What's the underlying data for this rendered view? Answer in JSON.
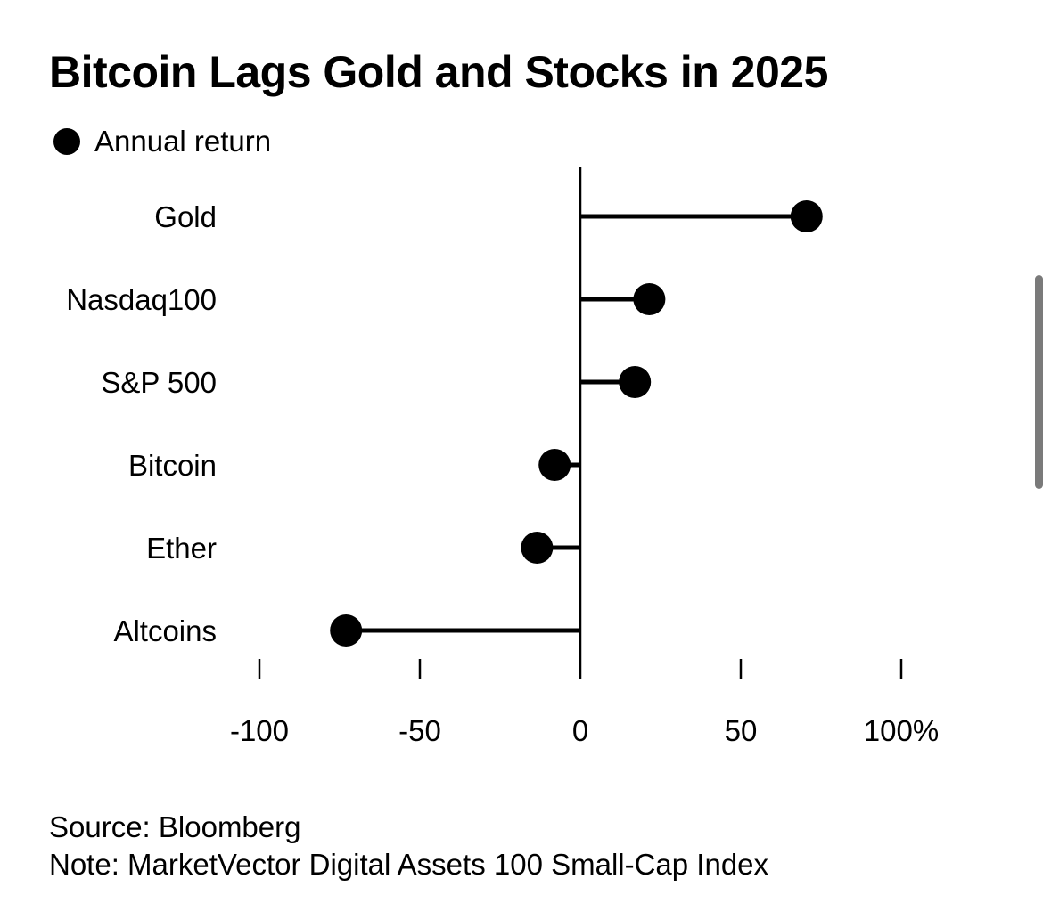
{
  "title": "Bitcoin Lags Gold and Stocks in 2025",
  "legend": {
    "label": "Annual return",
    "marker": "filled-circle"
  },
  "chart_data": {
    "type": "lollipop",
    "title": "Bitcoin Lags Gold and Stocks in 2025",
    "orientation": "horizontal",
    "categories": [
      "Gold",
      "Nasdaq100",
      "S&P 500",
      "Bitcoin",
      "Ether",
      "Altcoins"
    ],
    "series": [
      {
        "name": "Annual return",
        "values": [
          70.5,
          21.5,
          17,
          -8,
          -13.5,
          -73
        ]
      }
    ],
    "xlim": [
      -100,
      100
    ],
    "xticks": [
      -100,
      -50,
      0,
      50,
      100
    ],
    "xtick_labels": [
      "-100",
      "-50",
      "0",
      "50",
      "100%"
    ],
    "xlabel": "",
    "ylabel": "",
    "grid": false,
    "legend_position": "top-left",
    "colors": {
      "marker": "#000000",
      "stem": "#000000",
      "axis": "#000000"
    }
  },
  "footer": {
    "source": "Source: Bloomberg",
    "note": "Note: MarketVector Digital Assets 100 Small-Cap Index"
  }
}
